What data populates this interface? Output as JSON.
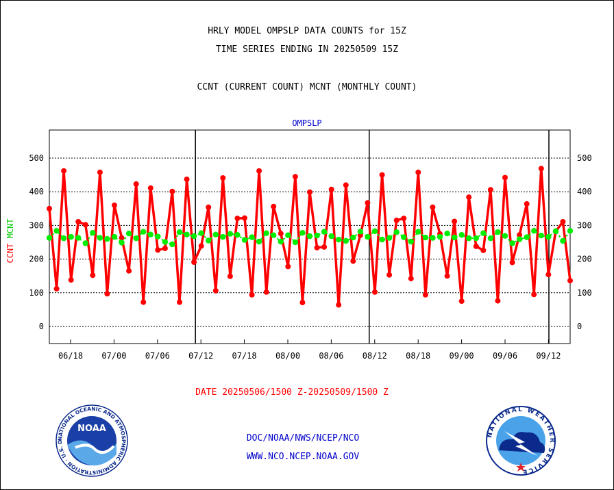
{
  "titles": {
    "line1": "HRLY MODEL OMPSLP DATA COUNTS for 15Z",
    "line2": "TIME SERIES ENDING IN 20250509 15Z",
    "line3": "CCNT (CURRENT COUNT) MCNT (MONTHLY COUNT)"
  },
  "footer": {
    "date_range": "DATE 20250506/1500 Z-20250509/1500 Z",
    "org": "DOC/NOAA/NWS/NCEP/NCO",
    "url": "WWW.NCO.NCEP.NOAA.GOV"
  },
  "chart_data": {
    "type": "line",
    "title": "OMPSLP",
    "ylabel_left_series1": "CCNT",
    "ylabel_left_series2": "MCNT",
    "ylim": [
      -50,
      580
    ],
    "yticks": [
      0,
      100,
      200,
      300,
      400,
      500
    ],
    "grid": true,
    "xtick_labels": [
      "06/18",
      "07/00",
      "07/06",
      "07/12",
      "07/18",
      "08/00",
      "08/06",
      "08/12",
      "08/18",
      "09/00",
      "09/06",
      "09/12"
    ],
    "series": [
      {
        "name": "CCNT",
        "color": "#ff0000",
        "values": [
          350,
          112,
          462,
          138,
          311,
          302,
          152,
          458,
          97,
          360,
          263,
          165,
          423,
          72,
          411,
          227,
          232,
          401,
          72,
          437,
          191,
          239,
          354,
          106,
          441,
          149,
          321,
          322,
          94,
          462,
          102,
          356,
          276,
          178,
          445,
          71,
          399,
          234,
          236,
          407,
          64,
          420,
          194,
          271,
          367,
          102,
          450,
          153,
          315,
          321,
          142,
          458,
          94,
          354,
          275,
          150,
          312,
          75,
          384,
          238,
          226,
          406,
          76,
          442,
          190,
          272,
          364,
          95,
          469,
          154,
          282,
          311,
          136
        ]
      },
      {
        "name": "MCNT",
        "color": "#00ee00",
        "values": [
          263,
          284,
          262,
          266,
          263,
          247,
          278,
          263,
          260,
          266,
          249,
          276,
          262,
          281,
          273,
          267,
          251,
          244,
          280,
          273,
          268,
          277,
          255,
          273,
          266,
          275,
          272,
          257,
          265,
          252,
          277,
          271,
          252,
          271,
          250,
          278,
          268,
          270,
          281,
          268,
          258,
          254,
          264,
          282,
          266,
          283,
          258,
          263,
          280,
          265,
          252,
          281,
          264,
          263,
          266,
          276,
          264,
          272,
          262,
          262,
          277,
          262,
          280,
          269,
          247,
          259,
          265,
          284,
          270,
          266,
          283,
          254,
          284
        ]
      }
    ]
  },
  "logos": {
    "noaa_text": "NOAA",
    "noaa_ring_text": "NATIONAL OCEANIC AND ATMOSPHERIC ADMINISTRATION · U.S. DEPARTMENT OF COMMERCE",
    "nws_ring_text": "NATIONAL WEATHER SERVICE"
  }
}
